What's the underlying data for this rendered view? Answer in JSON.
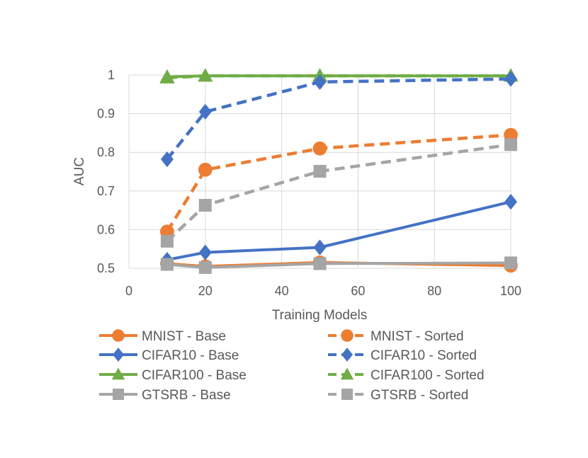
{
  "chart_data": {
    "type": "line",
    "title": "",
    "xlabel": "Training Models",
    "ylabel": "AUC",
    "x": [
      10,
      20,
      50,
      100
    ],
    "xlim": [
      0,
      100
    ],
    "ylim": [
      0.5,
      1.0
    ],
    "xticks": [
      "0",
      "20",
      "40",
      "60",
      "80",
      "100"
    ],
    "yticks": [
      "0.5",
      "0.6",
      "0.7",
      "0.8",
      "0.9",
      "1"
    ],
    "grid": true,
    "legend_position": "bottom",
    "series": [
      {
        "name": "MNIST - Base",
        "values": [
          0.512,
          0.505,
          0.515,
          0.507
        ],
        "color": "#ED7D31",
        "marker": "circle",
        "dashed": false
      },
      {
        "name": "MNIST - Sorted",
        "values": [
          0.595,
          0.755,
          0.81,
          0.845
        ],
        "color": "#ED7D31",
        "marker": "circle",
        "dashed": true
      },
      {
        "name": "CIFAR10 - Base",
        "values": [
          0.522,
          0.541,
          0.554,
          0.672
        ],
        "color": "#4472C4",
        "marker": "diamond",
        "dashed": false
      },
      {
        "name": "CIFAR10 - Sorted",
        "values": [
          0.782,
          0.905,
          0.982,
          0.99
        ],
        "color": "#4472C4",
        "marker": "diamond",
        "dashed": true
      },
      {
        "name": "CIFAR100 - Base",
        "values": [
          0.995,
          0.998,
          0.998,
          0.998
        ],
        "color": "#70AD47",
        "marker": "triangle",
        "dashed": false
      },
      {
        "name": "CIFAR100 - Sorted",
        "values": [
          0.993,
          0.998,
          0.998,
          0.998
        ],
        "color": "#70AD47",
        "marker": "triangle",
        "dashed": true
      },
      {
        "name": "GTSRB - Base",
        "values": [
          0.51,
          0.502,
          0.512,
          0.514
        ],
        "color": "#A5A5A5",
        "marker": "square",
        "dashed": false
      },
      {
        "name": "GTSRB - Sorted",
        "values": [
          0.57,
          0.663,
          0.751,
          0.82
        ],
        "color": "#A5A5A5",
        "marker": "square",
        "dashed": true
      }
    ]
  }
}
